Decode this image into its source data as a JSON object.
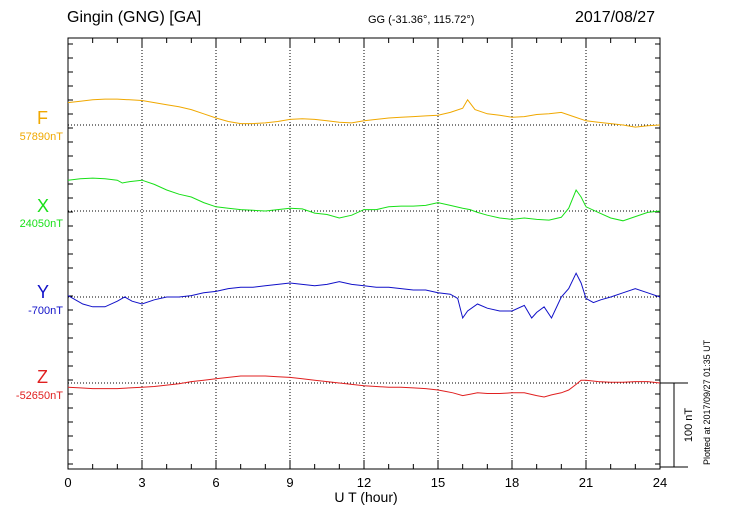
{
  "header": {
    "station": "Gingin (GNG)  [GA]",
    "coords": "GG (-31.36°, 115.72°)",
    "date": "2017/08/27"
  },
  "plot_note": "Plotted at 2017/09/27 01:35 UT",
  "colors": {
    "F": "#f0a800",
    "X": "#18e018",
    "Y": "#1010c8",
    "Z": "#e02020"
  },
  "chart_data": {
    "type": "line",
    "title": "Gingin (GNG)  [GA]",
    "xlabel": "U T (hour)",
    "ylabel": "",
    "xlim": [
      0,
      24
    ],
    "xticks": [
      0,
      3,
      6,
      9,
      12,
      15,
      18,
      21,
      24
    ],
    "xtick_labels": [
      "0",
      "3",
      "6",
      "9",
      "12",
      "15",
      "18",
      "21",
      "24"
    ],
    "scale_bar": {
      "label": "100 nT",
      "value_nT": 100
    },
    "grid": true,
    "series": [
      {
        "name": "F",
        "baseline_label": "57890nT",
        "baseline_nT": 57890,
        "x": [
          0,
          0.5,
          1,
          1.5,
          2,
          2.5,
          3,
          3.5,
          4,
          4.5,
          5,
          5.5,
          6,
          6.5,
          7,
          7.5,
          8,
          8.5,
          9,
          9.5,
          10,
          10.5,
          11,
          11.5,
          12,
          12.5,
          13,
          13.5,
          14,
          14.5,
          15,
          15.5,
          16,
          16.2,
          16.5,
          17,
          17.5,
          18,
          18.5,
          19,
          19.5,
          20,
          20.5,
          21,
          21.5,
          22,
          22.5,
          23,
          23.5,
          24
        ],
        "y": [
          32,
          34,
          36,
          37,
          37,
          36,
          35,
          32,
          29,
          26,
          22,
          16,
          10,
          5,
          2,
          2,
          3,
          5,
          8,
          9,
          8,
          6,
          4,
          3,
          6,
          8,
          10,
          11,
          12,
          13,
          14,
          18,
          24,
          36,
          22,
          16,
          14,
          11,
          12,
          15,
          16,
          18,
          12,
          6,
          4,
          2,
          0,
          -3,
          -1,
          0
        ]
      },
      {
        "name": "X",
        "baseline_label": "24050nT",
        "baseline_nT": 24050,
        "x": [
          0,
          0.5,
          1,
          1.5,
          2,
          2.2,
          2.5,
          3,
          3.5,
          4,
          4.5,
          5,
          5.5,
          6,
          6.5,
          7,
          7.5,
          8,
          8.5,
          9,
          9.5,
          10,
          10.5,
          11,
          11.5,
          12,
          12.5,
          13,
          13.5,
          14,
          14.5,
          15,
          15.5,
          16,
          16.3,
          16.6,
          17,
          17.5,
          18,
          18.5,
          19,
          19.5,
          20,
          20.3,
          20.6,
          20.8,
          21,
          21.5,
          22,
          22.5,
          23,
          23.5,
          24
        ],
        "y": [
          44,
          46,
          47,
          46,
          44,
          40,
          42,
          44,
          38,
          30,
          24,
          20,
          12,
          6,
          4,
          2,
          1,
          0,
          2,
          4,
          3,
          -3,
          -5,
          -10,
          -6,
          2,
          2,
          6,
          7,
          7,
          8,
          12,
          8,
          4,
          2,
          -2,
          -6,
          -10,
          -12,
          -10,
          -12,
          -13,
          -9,
          4,
          30,
          20,
          6,
          -2,
          -10,
          -14,
          -8,
          -2,
          0
        ]
      },
      {
        "name": "Y",
        "baseline_label": "-700nT",
        "baseline_nT": -700,
        "x": [
          0,
          0.3,
          0.6,
          1,
          1.5,
          2,
          2.3,
          2.6,
          3,
          3.5,
          4,
          4.5,
          5,
          5.5,
          6,
          6.5,
          7,
          7.5,
          8,
          8.5,
          9,
          9.5,
          10,
          10.5,
          11,
          11.5,
          12,
          12.5,
          13,
          13.5,
          14,
          14.5,
          15,
          15.5,
          15.8,
          16,
          16.2,
          16.6,
          17,
          17.5,
          18,
          18.5,
          18.8,
          19,
          19.3,
          19.6,
          20,
          20.3,
          20.6,
          20.8,
          21,
          21.3,
          21.6,
          22,
          22.5,
          23,
          23.5,
          24
        ],
        "y": [
          2,
          -4,
          -10,
          -14,
          -14,
          -6,
          0,
          -6,
          -10,
          -4,
          0,
          0,
          2,
          6,
          8,
          12,
          14,
          14,
          16,
          18,
          20,
          18,
          16,
          18,
          22,
          18,
          16,
          14,
          14,
          12,
          10,
          10,
          6,
          4,
          -2,
          -30,
          -20,
          -10,
          -16,
          -20,
          -20,
          -12,
          -30,
          -22,
          -14,
          -30,
          0,
          12,
          34,
          20,
          -2,
          -8,
          -4,
          0,
          6,
          12,
          6,
          0
        ]
      },
      {
        "name": "Z",
        "baseline_label": "-52650nT",
        "baseline_nT": -52650,
        "x": [
          0,
          0.5,
          1,
          1.5,
          2,
          2.5,
          3,
          3.5,
          4,
          4.5,
          5,
          5.5,
          6,
          6.5,
          7,
          7.5,
          8,
          8.5,
          9,
          9.5,
          10,
          10.5,
          11,
          11.5,
          12,
          12.5,
          13,
          13.5,
          14,
          14.5,
          15,
          15.3,
          15.6,
          16,
          16.3,
          16.6,
          17,
          17.5,
          18,
          18.5,
          19,
          19.3,
          19.6,
          20,
          20.3,
          20.6,
          20.8,
          21,
          21.5,
          22,
          22.5,
          23,
          23.5,
          24
        ],
        "y": [
          -6,
          -7,
          -8,
          -8,
          -8,
          -7,
          -6,
          -5,
          -3,
          -1,
          2,
          4,
          6,
          8,
          10,
          10,
          10,
          9,
          8,
          6,
          4,
          2,
          0,
          -2,
          -4,
          -5,
          -6,
          -6,
          -7,
          -8,
          -10,
          -12,
          -14,
          -18,
          -16,
          -14,
          -15,
          -15,
          -14,
          -14,
          -18,
          -20,
          -17,
          -14,
          -10,
          -2,
          4,
          4,
          2,
          1,
          1,
          2,
          2,
          0
        ]
      }
    ]
  }
}
